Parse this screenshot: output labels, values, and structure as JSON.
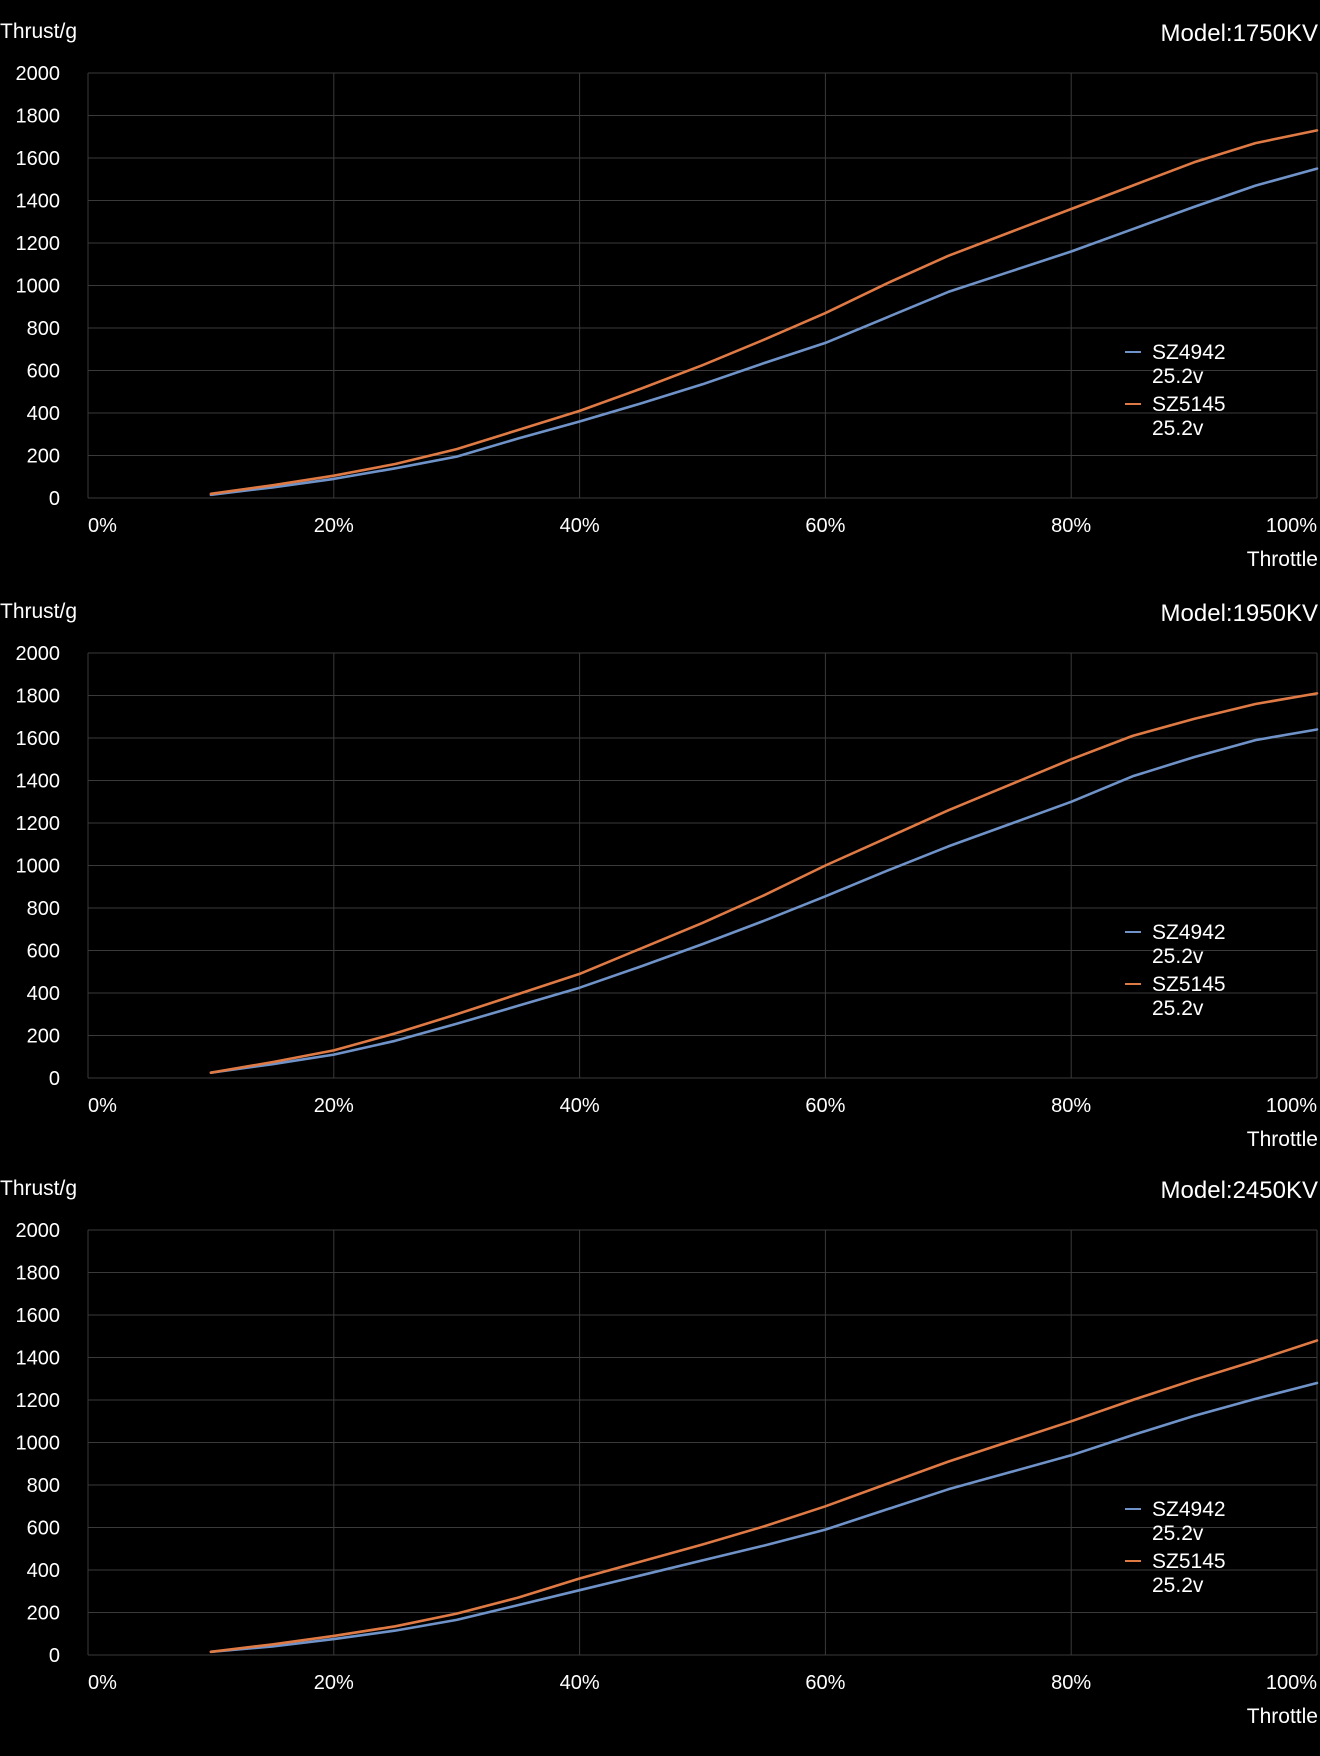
{
  "colors": {
    "background": "#000000",
    "grid": "#3a3a3a",
    "text": "#ffffff",
    "SZ4942": "#6f93c9",
    "SZ5145": "#e07a45"
  },
  "chart_data": [
    {
      "type": "line",
      "title": "Model:1750KV",
      "xlabel": "Throttle",
      "ylabel": "Thrust/g",
      "xlim": [
        0,
        100
      ],
      "ylim": [
        0,
        2000
      ],
      "x_ticks": [
        "0%",
        "20%",
        "40%",
        "60%",
        "80%",
        "100%"
      ],
      "y_ticks": [
        "0",
        "200",
        "400",
        "600",
        "800",
        "1000",
        "1200",
        "1400",
        "1600",
        "1800",
        "2000"
      ],
      "grid": true,
      "legend_position": "right",
      "x": [
        10,
        15,
        20,
        25,
        30,
        35,
        40,
        45,
        50,
        55,
        60,
        65,
        70,
        75,
        80,
        85,
        90,
        95,
        100
      ],
      "series": [
        {
          "name": "SZ4942",
          "sub": "25.2v",
          "color": "#6f93c9",
          "values": [
            15,
            50,
            90,
            140,
            195,
            280,
            360,
            445,
            535,
            635,
            730,
            850,
            970,
            1065,
            1160,
            1265,
            1370,
            1470,
            1550
          ]
        },
        {
          "name": "SZ5145",
          "sub": "25.2v",
          "color": "#e07a45",
          "values": [
            20,
            60,
            105,
            160,
            230,
            320,
            410,
            515,
            625,
            745,
            870,
            1010,
            1140,
            1250,
            1360,
            1470,
            1580,
            1670,
            1730
          ]
        }
      ]
    },
    {
      "type": "line",
      "title": "Model:1950KV",
      "xlabel": "Throttle",
      "ylabel": "Thrust/g",
      "xlim": [
        0,
        100
      ],
      "ylim": [
        0,
        2000
      ],
      "x_ticks": [
        "0%",
        "20%",
        "40%",
        "60%",
        "80%",
        "100%"
      ],
      "y_ticks": [
        "0",
        "200",
        "400",
        "600",
        "800",
        "1000",
        "1200",
        "1400",
        "1600",
        "1800",
        "2000"
      ],
      "grid": true,
      "legend_position": "right",
      "x": [
        10,
        15,
        20,
        25,
        30,
        35,
        40,
        45,
        50,
        55,
        60,
        65,
        70,
        75,
        80,
        85,
        90,
        95,
        100
      ],
      "series": [
        {
          "name": "SZ4942",
          "sub": "25.2v",
          "color": "#6f93c9",
          "values": [
            25,
            65,
            110,
            175,
            255,
            340,
            425,
            525,
            630,
            740,
            855,
            975,
            1090,
            1195,
            1300,
            1420,
            1510,
            1590,
            1640
          ]
        },
        {
          "name": "SZ5145",
          "sub": "25.2v",
          "color": "#e07a45",
          "values": [
            25,
            75,
            130,
            210,
            300,
            395,
            490,
            610,
            730,
            860,
            1000,
            1130,
            1260,
            1380,
            1500,
            1610,
            1690,
            1760,
            1810
          ]
        }
      ]
    },
    {
      "type": "line",
      "title": "Model:2450KV",
      "xlabel": "Throttle",
      "ylabel": "Thrust/g",
      "xlim": [
        0,
        100
      ],
      "ylim": [
        0,
        2000
      ],
      "x_ticks": [
        "0%",
        "20%",
        "40%",
        "60%",
        "80%",
        "100%"
      ],
      "y_ticks": [
        "0",
        "200",
        "400",
        "600",
        "800",
        "1000",
        "1200",
        "1400",
        "1600",
        "1800",
        "2000"
      ],
      "grid": true,
      "legend_position": "right",
      "x": [
        10,
        15,
        20,
        25,
        30,
        35,
        40,
        45,
        50,
        55,
        60,
        65,
        70,
        75,
        80,
        85,
        90,
        95,
        100
      ],
      "series": [
        {
          "name": "SZ4942",
          "sub": "25.2v",
          "color": "#6f93c9",
          "values": [
            15,
            40,
            75,
            115,
            165,
            235,
            305,
            375,
            445,
            515,
            590,
            685,
            780,
            860,
            940,
            1035,
            1125,
            1205,
            1280
          ]
        },
        {
          "name": "SZ5145",
          "sub": "25.2v",
          "color": "#e07a45",
          "values": [
            15,
            50,
            90,
            135,
            195,
            270,
            360,
            440,
            520,
            605,
            700,
            805,
            910,
            1005,
            1100,
            1200,
            1295,
            1385,
            1480
          ]
        }
      ]
    }
  ]
}
